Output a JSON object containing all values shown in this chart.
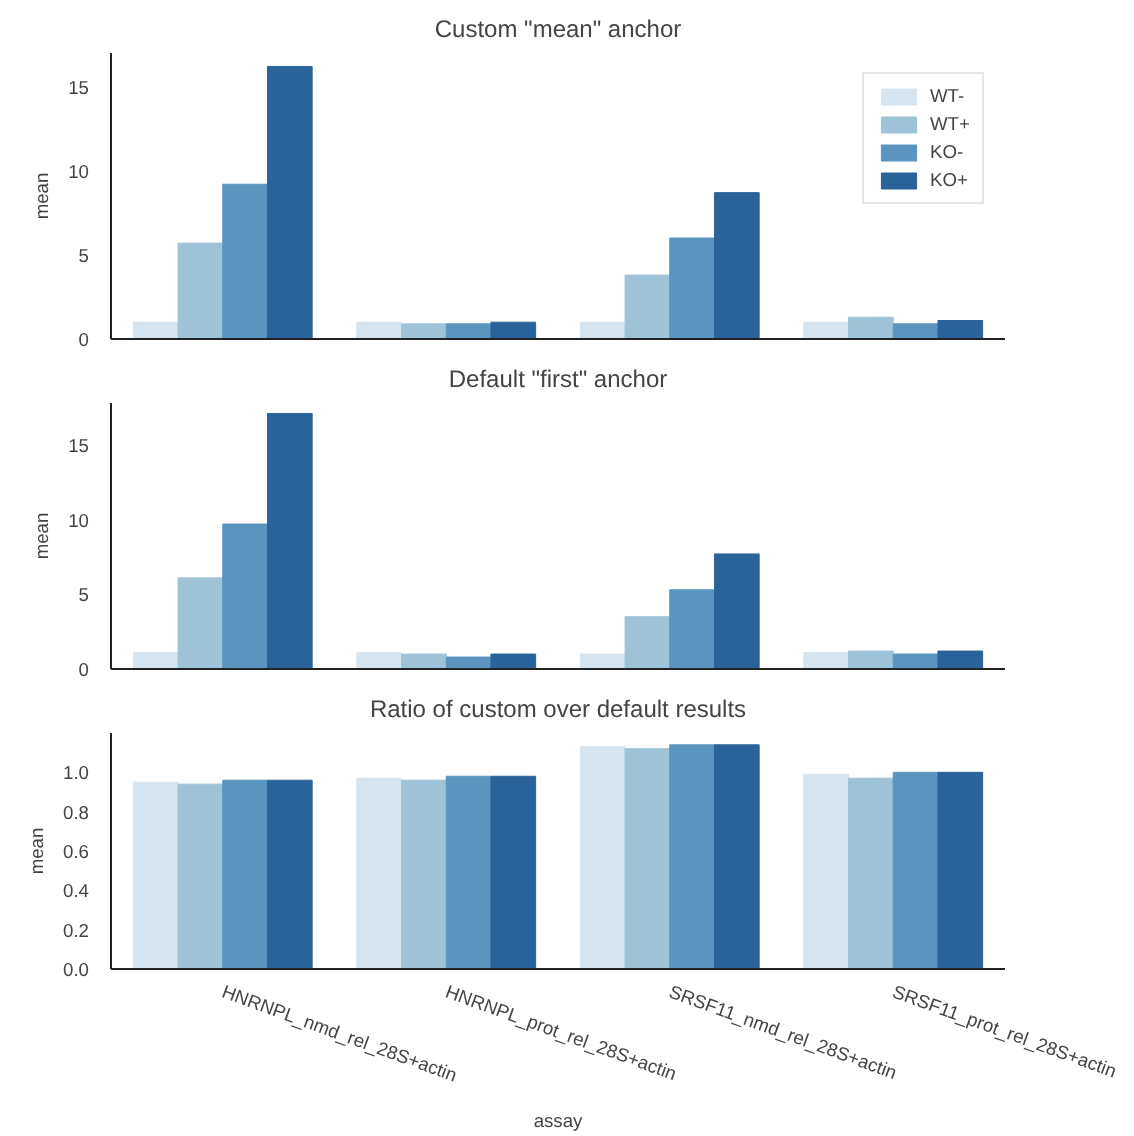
{
  "chart_data": [
    {
      "type": "bar",
      "title": "Custom \"mean\" anchor",
      "ylabel": "mean",
      "categories": [
        null,
        null,
        null,
        null
      ],
      "ylim": [
        0,
        17
      ],
      "yticks": [
        0,
        5,
        10,
        15
      ],
      "tick_labels": "y",
      "legend": "top right",
      "grid": false,
      "series": [
        {
          "name": "WT-",
          "color": "#d6e4f0",
          "values": [
            1.0,
            1.0,
            1.0,
            1.0
          ]
        },
        {
          "name": "WT+",
          "color": "#9ec3d8",
          "values": [
            5.7,
            0.9,
            3.8,
            1.3
          ]
        },
        {
          "name": "KO-",
          "color": "#5b95bf",
          "values": [
            9.2,
            0.9,
            6.0,
            0.9
          ]
        },
        {
          "name": "KO+",
          "color": "#2a6399",
          "values": [
            16.2,
            1.0,
            8.7,
            1.1
          ]
        }
      ]
    },
    {
      "type": "bar",
      "title": "Default \"first\" anchor",
      "ylabel": "mean",
      "categories": [
        null,
        null,
        null,
        null
      ],
      "ylim": [
        0,
        17.8
      ],
      "yticks": [
        0,
        5,
        10,
        15
      ],
      "tick_labels": "y",
      "grid": false,
      "series": [
        {
          "color": "#d6e4f0",
          "values": [
            1.1,
            1.1,
            1.0,
            1.1
          ]
        },
        {
          "color": "#9ec3d8",
          "values": [
            6.1,
            1.0,
            3.5,
            1.2
          ]
        },
        {
          "color": "#5b95bf",
          "values": [
            9.7,
            0.8,
            5.3,
            1.0
          ]
        },
        {
          "color": "#2a6399",
          "values": [
            17.1,
            1.0,
            7.7,
            1.2
          ]
        }
      ]
    },
    {
      "type": "bar",
      "title": "Ratio of custom over default results",
      "ylabel": "mean",
      "xlabel": "assay",
      "categories": [
        "HNRNPL_nmd_rel_28S+actin",
        "HNRNPL_prot_rel_28S+actin",
        "SRSF11_nmd_rel_28S+actin",
        "SRSF11_prot_rel_28S+actin"
      ],
      "ylim": [
        0,
        1.2
      ],
      "yticks": [
        {
          "value": 0,
          "label": "0.0"
        },
        0.2,
        0.4,
        0.6,
        0.8,
        {
          "value": 1,
          "label": "1.0"
        }
      ],
      "grid": false,
      "series": [
        {
          "color": "#d6e4f0",
          "values": [
            0.95,
            0.97,
            1.13,
            0.99
          ]
        },
        {
          "color": "#9ec3d8",
          "values": [
            0.94,
            0.96,
            1.12,
            0.97
          ]
        },
        {
          "color": "#5b95bf",
          "values": [
            0.96,
            0.98,
            1.14,
            1.0
          ]
        },
        {
          "color": "#2a6399",
          "values": [
            0.96,
            0.98,
            1.14,
            1.0
          ]
        }
      ]
    }
  ]
}
